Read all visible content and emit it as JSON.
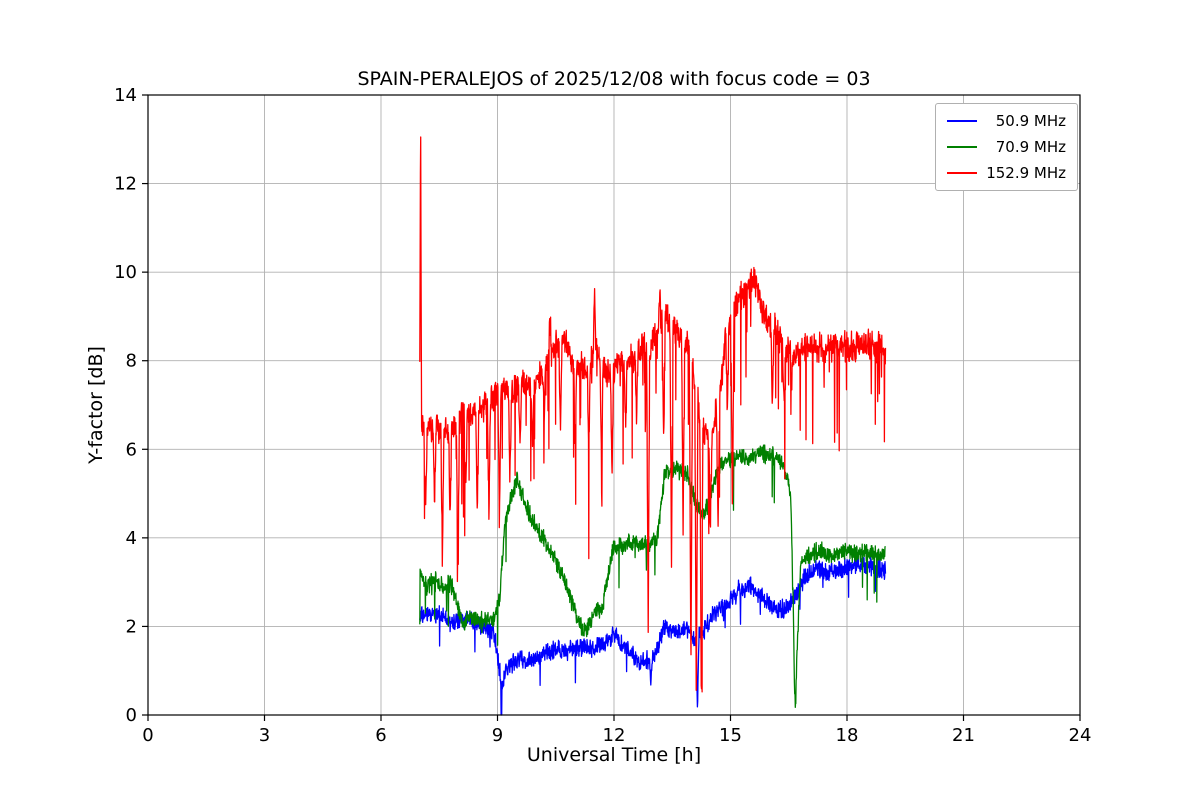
{
  "chart_data": {
    "type": "line",
    "title": "SPAIN-PERALEJOS of 2025/12/08 with focus code = 03",
    "xlabel": "Universal Time [h]",
    "ylabel": "Y-factor [dB]",
    "xlim": [
      0,
      24
    ],
    "ylim": [
      0,
      14
    ],
    "xticks": [
      0,
      3,
      6,
      9,
      12,
      15,
      18,
      21,
      24
    ],
    "yticks": [
      0,
      2,
      4,
      6,
      8,
      10,
      12,
      14
    ],
    "grid": true,
    "legend_position": "upper right",
    "series": [
      {
        "name": "50.9 MHz",
        "color": "#0000ff",
        "noise": 0.16,
        "down_rate": 0.01,
        "down_depth": 0.5,
        "keypoints": [
          [
            7.0,
            2.2
          ],
          [
            7.4,
            2.3
          ],
          [
            7.8,
            2.1
          ],
          [
            8.2,
            2.2
          ],
          [
            8.6,
            2.05
          ],
          [
            8.9,
            1.9
          ],
          [
            9.05,
            1.0
          ],
          [
            9.15,
            0.8
          ],
          [
            9.3,
            1.1
          ],
          [
            9.6,
            1.3
          ],
          [
            9.9,
            1.2
          ],
          [
            10.2,
            1.35
          ],
          [
            10.5,
            1.5
          ],
          [
            10.8,
            1.4
          ],
          [
            11.1,
            1.55
          ],
          [
            11.4,
            1.5
          ],
          [
            11.7,
            1.6
          ],
          [
            12.0,
            1.8
          ],
          [
            12.3,
            1.5
          ],
          [
            12.6,
            1.25
          ],
          [
            12.9,
            1.2
          ],
          [
            13.1,
            1.4
          ],
          [
            13.3,
            2.0
          ],
          [
            13.6,
            1.9
          ],
          [
            13.9,
            1.95
          ],
          [
            14.05,
            1.7
          ],
          [
            14.3,
            1.9
          ],
          [
            14.6,
            2.3
          ],
          [
            14.9,
            2.5
          ],
          [
            15.2,
            2.8
          ],
          [
            15.5,
            2.9
          ],
          [
            15.8,
            2.7
          ],
          [
            16.1,
            2.4
          ],
          [
            16.4,
            2.4
          ],
          [
            16.7,
            2.7
          ],
          [
            16.9,
            3.1
          ],
          [
            17.2,
            3.3
          ],
          [
            17.5,
            3.2
          ],
          [
            17.8,
            3.3
          ],
          [
            18.1,
            3.35
          ],
          [
            18.4,
            3.4
          ],
          [
            18.7,
            3.3
          ],
          [
            19.0,
            3.25
          ]
        ],
        "spikes": [
          [
            9.1,
            0.5
          ],
          [
            12.95,
            0.7
          ],
          [
            14.15,
            0.15
          ]
        ]
      },
      {
        "name": "70.9 MHz",
        "color": "#008000",
        "noise": 0.15,
        "down_rate": 0.012,
        "down_depth": 0.6,
        "keypoints": [
          [
            7.0,
            3.2
          ],
          [
            7.2,
            2.9
          ],
          [
            7.4,
            3.1
          ],
          [
            7.6,
            2.85
          ],
          [
            7.8,
            3.0
          ],
          [
            7.95,
            2.5
          ],
          [
            8.1,
            2.1
          ],
          [
            8.3,
            2.2
          ],
          [
            8.5,
            2.1
          ],
          [
            8.7,
            2.15
          ],
          [
            8.9,
            2.2
          ],
          [
            9.05,
            2.6
          ],
          [
            9.2,
            4.4
          ],
          [
            9.35,
            4.9
          ],
          [
            9.5,
            5.3
          ],
          [
            9.6,
            5.1
          ],
          [
            9.75,
            4.7
          ],
          [
            9.9,
            4.4
          ],
          [
            10.1,
            4.1
          ],
          [
            10.3,
            3.8
          ],
          [
            10.5,
            3.5
          ],
          [
            10.7,
            3.1
          ],
          [
            10.9,
            2.6
          ],
          [
            11.1,
            2.1
          ],
          [
            11.3,
            1.9
          ],
          [
            11.5,
            2.3
          ],
          [
            11.7,
            2.4
          ],
          [
            11.85,
            3.2
          ],
          [
            12.0,
            3.8
          ],
          [
            12.3,
            3.85
          ],
          [
            12.6,
            3.9
          ],
          [
            12.9,
            3.85
          ],
          [
            13.1,
            3.95
          ],
          [
            13.3,
            5.4
          ],
          [
            13.5,
            5.6
          ],
          [
            13.7,
            5.5
          ],
          [
            13.9,
            5.45
          ],
          [
            14.1,
            4.8
          ],
          [
            14.3,
            4.5
          ],
          [
            14.5,
            5.0
          ],
          [
            14.7,
            5.6
          ],
          [
            14.9,
            5.75
          ],
          [
            15.2,
            5.85
          ],
          [
            15.5,
            5.8
          ],
          [
            15.8,
            5.9
          ],
          [
            16.1,
            5.85
          ],
          [
            16.35,
            5.7
          ],
          [
            16.55,
            5.0
          ],
          [
            16.65,
            1.0
          ],
          [
            16.72,
            1.5
          ],
          [
            16.8,
            3.4
          ],
          [
            17.0,
            3.6
          ],
          [
            17.3,
            3.7
          ],
          [
            17.6,
            3.6
          ],
          [
            17.9,
            3.7
          ],
          [
            18.2,
            3.65
          ],
          [
            18.5,
            3.7
          ],
          [
            18.8,
            3.6
          ],
          [
            19.0,
            3.6
          ]
        ],
        "spikes": [
          [
            16.67,
            0.1
          ]
        ]
      },
      {
        "name": "152.9 MHz",
        "color": "#ff0000",
        "noise": 0.25,
        "down_rate": 0.05,
        "down_depth": 1.2,
        "keypoints": [
          [
            7.0,
            6.4
          ],
          [
            7.3,
            6.5
          ],
          [
            7.6,
            6.35
          ],
          [
            7.9,
            6.6
          ],
          [
            8.2,
            6.9
          ],
          [
            8.5,
            6.8
          ],
          [
            8.8,
            7.1
          ],
          [
            9.1,
            7.4
          ],
          [
            9.4,
            7.3
          ],
          [
            9.7,
            7.45
          ],
          [
            10.0,
            7.5
          ],
          [
            10.3,
            7.9
          ],
          [
            10.5,
            8.4
          ],
          [
            10.7,
            8.5
          ],
          [
            10.9,
            8.1
          ],
          [
            11.1,
            7.9
          ],
          [
            11.3,
            7.75
          ],
          [
            11.5,
            8.3
          ],
          [
            11.7,
            7.9
          ],
          [
            11.9,
            7.6
          ],
          [
            12.1,
            8.0
          ],
          [
            12.3,
            7.85
          ],
          [
            12.5,
            8.1
          ],
          [
            12.7,
            8.3
          ],
          [
            12.9,
            8.2
          ],
          [
            13.1,
            8.6
          ],
          [
            13.3,
            9.0
          ],
          [
            13.5,
            8.8
          ],
          [
            13.7,
            8.6
          ],
          [
            13.9,
            8.4
          ],
          [
            14.1,
            7.4
          ],
          [
            14.3,
            6.4
          ],
          [
            14.5,
            6.3
          ],
          [
            14.7,
            7.1
          ],
          [
            14.9,
            8.6
          ],
          [
            15.1,
            9.3
          ],
          [
            15.3,
            9.5
          ],
          [
            15.5,
            9.7
          ],
          [
            15.65,
            9.8
          ],
          [
            15.8,
            9.2
          ],
          [
            16.0,
            8.8
          ],
          [
            16.2,
            8.65
          ],
          [
            16.4,
            8.3
          ],
          [
            16.6,
            8.0
          ],
          [
            16.8,
            8.3
          ],
          [
            17.0,
            8.35
          ],
          [
            17.4,
            8.3
          ],
          [
            17.8,
            8.35
          ],
          [
            18.2,
            8.3
          ],
          [
            18.6,
            8.35
          ],
          [
            19.0,
            8.3
          ]
        ],
        "spikes": [
          [
            7.02,
            13.8,
            0.025
          ],
          [
            7.15,
            4.6
          ],
          [
            7.38,
            4.9
          ],
          [
            7.58,
            3.4
          ],
          [
            7.78,
            4.4
          ],
          [
            7.98,
            3.3
          ],
          [
            8.18,
            4.9
          ],
          [
            8.48,
            4.7
          ],
          [
            8.78,
            4.3
          ],
          [
            9.05,
            4.1
          ],
          [
            9.32,
            5.2
          ],
          [
            9.58,
            6.1
          ],
          [
            9.9,
            6.0
          ],
          [
            10.2,
            6.5
          ],
          [
            10.35,
            9.5,
            0.03
          ],
          [
            10.62,
            6.4
          ],
          [
            11.0,
            6.1
          ],
          [
            11.35,
            5.8
          ],
          [
            11.5,
            9.6,
            0.03
          ],
          [
            11.68,
            5.6
          ],
          [
            11.95,
            5.4
          ],
          [
            12.3,
            6.6
          ],
          [
            12.58,
            6.9
          ],
          [
            12.88,
            2.0
          ],
          [
            13.18,
            9.6,
            0.03
          ],
          [
            13.28,
            6.2
          ],
          [
            13.48,
            3.6
          ],
          [
            13.78,
            4.4
          ],
          [
            13.98,
            1.0
          ],
          [
            14.12,
            0.1
          ],
          [
            14.25,
            0.05
          ],
          [
            14.48,
            4.1
          ],
          [
            14.68,
            4.2
          ],
          [
            14.92,
            6.8
          ],
          [
            15.05,
            4.3
          ],
          [
            16.08,
            6.9
          ],
          [
            16.38,
            7.0
          ],
          [
            16.58,
            7.6
          ]
        ]
      }
    ]
  }
}
